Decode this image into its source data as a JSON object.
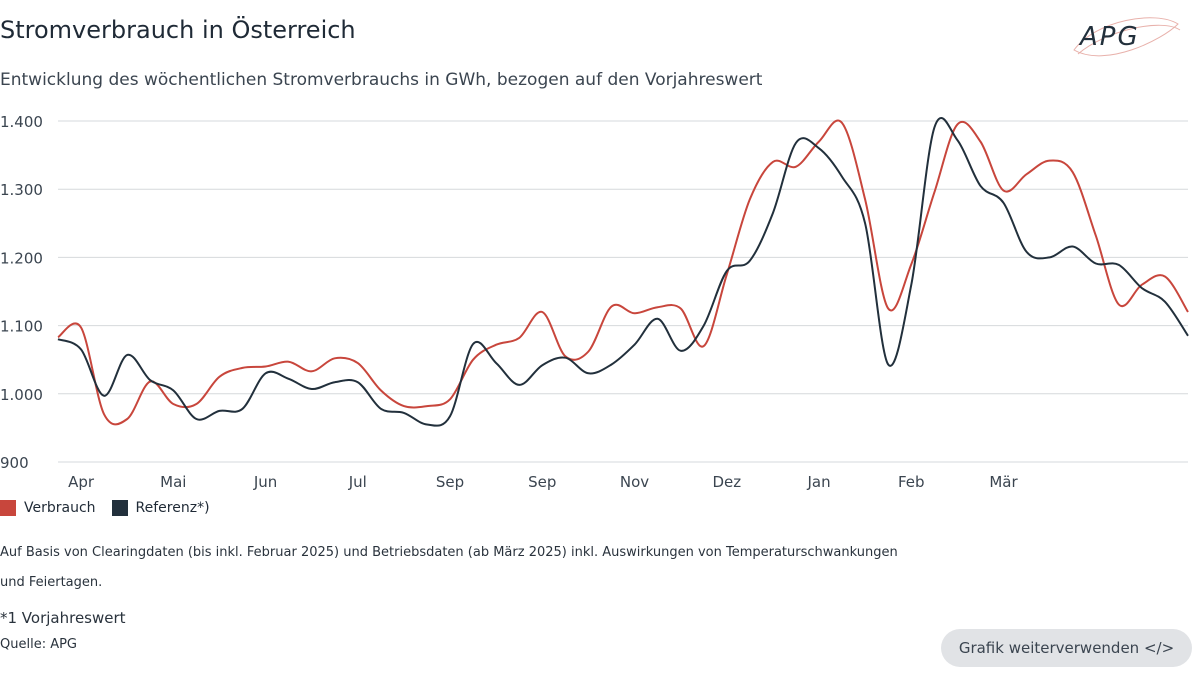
{
  "header": {
    "title": "Stromverbrauch in Österreich",
    "subtitle": "Entwicklung des wöchentlichen Stromverbrauchs in GWh, bezogen auf den Vorjahreswert",
    "logo_text": "APG"
  },
  "colors": {
    "verbrauch": "#c8463c",
    "referenz": "#22303c",
    "grid": "#d6d9dc"
  },
  "chart_data": {
    "type": "line",
    "title": "Stromverbrauch in Österreich",
    "subtitle": "Entwicklung des wöchentlichen Stromverbrauchs in GWh, bezogen auf den Vorjahreswert",
    "xlabel": "",
    "ylabel": "",
    "ylim": [
      900,
      1400
    ],
    "yticks": [
      900,
      1000,
      1100,
      1200,
      1300,
      1400
    ],
    "ytick_labels": [
      "900",
      "1.000",
      "1.100",
      "1.200",
      "1.300",
      "1.400"
    ],
    "x_month_labels": [
      "Apr",
      "Mai",
      "Jun",
      "Jul",
      "Sep",
      "Sep",
      "Nov",
      "Dez",
      "Jan",
      "Feb",
      "Mär"
    ],
    "x_month_label_weeks": [
      1,
      5,
      9,
      13,
      17,
      21,
      25,
      29,
      33,
      37,
      41
    ],
    "grid": true,
    "legend_position": "bottom-left",
    "series": [
      {
        "name": "Verbrauch",
        "values": [
          1083,
          1097,
          970,
          963,
          1018,
          985,
          985,
          1025,
          1038,
          1040,
          1047,
          1033,
          1052,
          1045,
          1005,
          982,
          982,
          992,
          1050,
          1072,
          1082,
          1120,
          1055,
          1062,
          1128,
          1118,
          1127,
          1125,
          1070,
          1175,
          1285,
          1340,
          1333,
          1370,
          1397,
          1285,
          1125,
          1190,
          1295,
          1395,
          1370,
          1298,
          1322,
          1342,
          1325,
          1232,
          1131,
          1160,
          1172,
          1120
        ]
      },
      {
        "name": "Referenz*)",
        "values": [
          1080,
          1065,
          997,
          1057,
          1020,
          1005,
          963,
          975,
          978,
          1030,
          1022,
          1007,
          1017,
          1017,
          978,
          972,
          955,
          967,
          1073,
          1045,
          1013,
          1042,
          1053,
          1030,
          1043,
          1072,
          1110,
          1063,
          1100,
          1180,
          1195,
          1265,
          1368,
          1360,
          1318,
          1250,
          1043,
          1160,
          1390,
          1372,
          1305,
          1280,
          1208,
          1200,
          1216,
          1191,
          1189,
          1155,
          1135,
          1085
        ]
      }
    ]
  },
  "legend": {
    "verbrauch": "Verbrauch",
    "referenz": "Referenz*)"
  },
  "notes": {
    "line1": "Auf Basis von Clearingdaten (bis inkl. Februar 2025) und Betriebsdaten (ab März  2025) inkl. Auswirkungen von Temperaturschwankungen",
    "line2": "und Feiertagen.",
    "footnote": "*1 Vorjahreswert",
    "source": "Quelle: APG"
  },
  "actions": {
    "reuse_label": "Grafik weiterverwenden </>"
  }
}
